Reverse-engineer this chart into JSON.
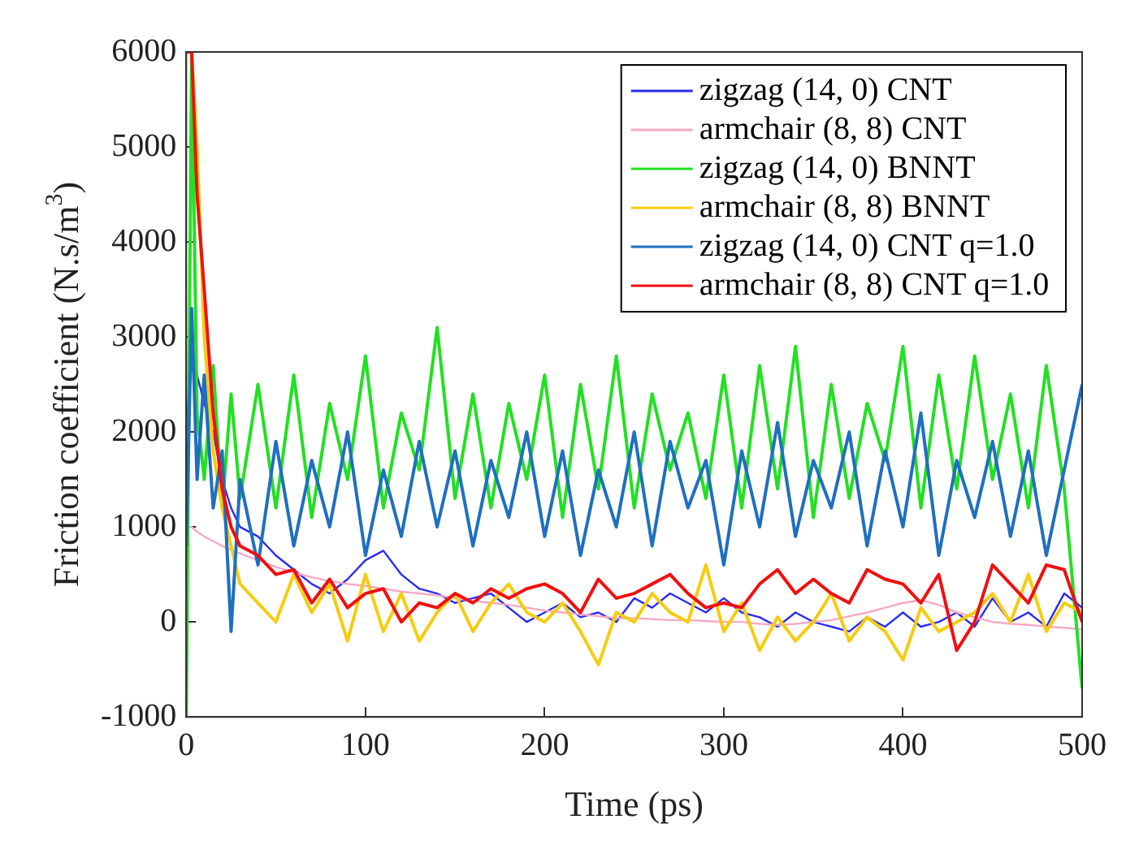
{
  "chart_data": {
    "type": "line",
    "xlabel": "Time (ps)",
    "ylabel": "Friction coefficient (N.s/m$^{3}$)",
    "x": [
      0,
      3,
      6,
      10,
      15,
      20,
      25,
      30,
      40,
      50,
      60,
      70,
      80,
      90,
      100,
      110,
      120,
      130,
      140,
      150,
      160,
      170,
      180,
      190,
      200,
      210,
      220,
      230,
      240,
      250,
      260,
      270,
      280,
      290,
      300,
      310,
      320,
      330,
      340,
      350,
      360,
      370,
      380,
      390,
      400,
      410,
      420,
      430,
      440,
      450,
      460,
      470,
      480,
      490,
      500
    ],
    "xlim": [
      0,
      500
    ],
    "xticks": [
      0,
      100,
      200,
      300,
      400,
      500
    ],
    "ylim": [
      -1000,
      6000
    ],
    "yticks": [
      -1000,
      0,
      1000,
      2000,
      3000,
      4000,
      5000,
      6000
    ],
    "grid": false,
    "legend": "top right",
    "marker": "none",
    "line_style": "solid",
    "series": [
      {
        "name": "zigzag (14, 0) CNT",
        "color": "#2b2bf0",
        "values": [
          2000,
          2900,
          2600,
          2300,
          2000,
          1500,
          1200,
          1000,
          900,
          700,
          550,
          400,
          300,
          450,
          650,
          750,
          500,
          350,
          300,
          200,
          250,
          300,
          150,
          0,
          100,
          200,
          50,
          100,
          0,
          250,
          150,
          300,
          200,
          100,
          250,
          100,
          50,
          -50,
          100,
          0,
          -50,
          -100,
          50,
          -50,
          100,
          -50,
          0,
          100,
          -50,
          250,
          0,
          100,
          -50,
          300,
          150
        ]
      },
      {
        "name": "armchair (8, 8) CNT",
        "color": "#f4a8c8",
        "values": [
          1000,
          1000,
          950,
          900,
          850,
          800,
          760,
          720,
          650,
          580,
          520,
          470,
          430,
          400,
          380,
          350,
          320,
          300,
          280,
          250,
          220,
          200,
          180,
          150,
          120,
          100,
          80,
          60,
          40,
          40,
          30,
          20,
          20,
          10,
          0,
          0,
          -20,
          -30,
          -20,
          0,
          20,
          60,
          100,
          150,
          200,
          230,
          180,
          100,
          50,
          0,
          -20,
          -30,
          -50,
          -60,
          -80
        ]
      },
      {
        "name": "zigzag (14, 0) BNNT",
        "color": "#22e022",
        "values": [
          -1000,
          6000,
          2200,
          1500,
          2700,
          1200,
          2400,
          1300,
          2500,
          1200,
          2600,
          1100,
          2300,
          1500,
          2800,
          1200,
          2200,
          1600,
          3100,
          1300,
          2400,
          1200,
          2300,
          1500,
          2600,
          1100,
          2500,
          1400,
          2800,
          1200,
          2400,
          1600,
          2200,
          1300,
          2600,
          1200,
          2700,
          1400,
          2900,
          1100,
          2500,
          1300,
          2300,
          1700,
          2900,
          1200,
          2600,
          1400,
          2800,
          1500,
          2400,
          1200,
          2700,
          1400,
          -700
        ]
      },
      {
        "name": "armchair (8, 8) BNNT",
        "color": "#f5cc10",
        "values": [
          6000,
          6000,
          5000,
          3000,
          1800,
          1200,
          800,
          400,
          200,
          0,
          500,
          100,
          400,
          -200,
          500,
          -100,
          300,
          -200,
          100,
          300,
          -100,
          200,
          400,
          100,
          0,
          200,
          -100,
          -450,
          100,
          0,
          300,
          100,
          0,
          600,
          -100,
          200,
          -300,
          50,
          -200,
          0,
          300,
          -200,
          50,
          -100,
          -400,
          150,
          -100,
          0,
          100,
          300,
          0,
          500,
          -100,
          200,
          100
        ]
      },
      {
        "name": "zigzag (14, 0) CNT q=1.0",
        "color": "#1f6fbf",
        "values": [
          800,
          3300,
          1500,
          2600,
          1200,
          1800,
          -100,
          1500,
          600,
          1900,
          800,
          1700,
          1000,
          2000,
          700,
          1600,
          900,
          1900,
          1000,
          1800,
          800,
          1700,
          1100,
          2000,
          900,
          1800,
          700,
          1600,
          1000,
          2000,
          800,
          1900,
          1200,
          1700,
          600,
          1800,
          1000,
          2100,
          900,
          1700,
          1200,
          2000,
          800,
          1800,
          1000,
          2200,
          700,
          1700,
          1100,
          1900,
          900,
          1800,
          700,
          1600,
          2500
        ]
      },
      {
        "name": "armchair (8, 8) CNT q=1.0",
        "color": "#f01010",
        "values": [
          6000,
          6000,
          4500,
          3500,
          2200,
          1400,
          1000,
          800,
          700,
          500,
          550,
          200,
          450,
          150,
          300,
          350,
          0,
          200,
          150,
          300,
          200,
          350,
          250,
          350,
          400,
          300,
          100,
          450,
          250,
          300,
          400,
          500,
          300,
          150,
          200,
          150,
          400,
          550,
          300,
          450,
          300,
          200,
          550,
          450,
          400,
          200,
          500,
          -300,
          0,
          600,
          400,
          200,
          600,
          550,
          0
        ]
      }
    ]
  }
}
